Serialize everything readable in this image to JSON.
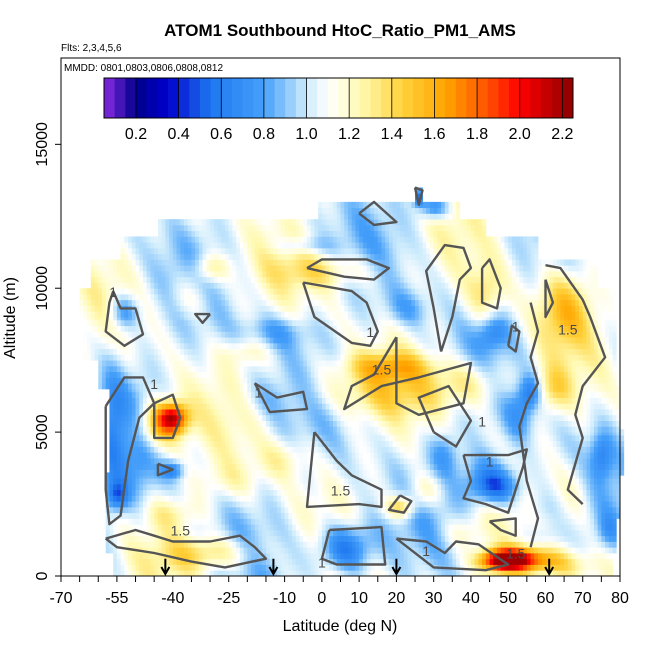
{
  "chart_data": {
    "type": "heatmap",
    "title": "ATOM1 Southbound HtoC_Ratio_PM1_AMS",
    "flights_note": "Flts: 2,3,4,5,6",
    "dates_note": "MMDD: 0801,0803,0806,0808,0812",
    "xlabel": "Latitude (deg N)",
    "ylabel": "Altitude (m)",
    "xlim": [
      -70,
      80
    ],
    "ylim": [
      0,
      18000
    ],
    "x_ticks": [
      -70,
      -55,
      -40,
      -25,
      -10,
      0,
      10,
      20,
      30,
      40,
      50,
      60,
      70,
      80
    ],
    "x_tick_labels": [
      "-70",
      "-55",
      "-40",
      "-25",
      "-10",
      "0",
      "10",
      "20",
      "30",
      "40",
      "50",
      "60",
      "70",
      "80"
    ],
    "y_ticks": [
      0,
      5000,
      10000,
      15000
    ],
    "y_tick_labels": [
      "0",
      "5000",
      "10000",
      "15000"
    ],
    "colorbar": {
      "range": [
        0.05,
        2.25
      ],
      "ticks": [
        0.2,
        0.4,
        0.6,
        0.8,
        1.0,
        1.2,
        1.4,
        1.6,
        1.8,
        2.0,
        2.2
      ],
      "tick_labels": [
        "0.2",
        "0.4",
        "0.6",
        "0.8",
        "1.0",
        "1.2",
        "1.4",
        "1.6",
        "1.8",
        "2.0",
        "2.2"
      ]
    },
    "contour_levels": [
      1,
      1.5
    ],
    "contour_labels": [
      {
        "text": "1",
        "lat": -56,
        "alt": 9700
      },
      {
        "text": "1",
        "lat": 13,
        "alt": 8300
      },
      {
        "text": "1.5",
        "lat": 16,
        "alt": 7000
      },
      {
        "text": "1",
        "lat": -17,
        "alt": 6200
      },
      {
        "text": "1",
        "lat": -45,
        "alt": 6500
      },
      {
        "text": "1.5",
        "lat": 66,
        "alt": 8400
      },
      {
        "text": "1",
        "lat": 52,
        "alt": 8500
      },
      {
        "text": "1",
        "lat": 43,
        "alt": 5200
      },
      {
        "text": "1",
        "lat": 45,
        "alt": 3800
      },
      {
        "text": "1.5",
        "lat": 5,
        "alt": 2800
      },
      {
        "text": "1.5",
        "lat": -38,
        "alt": 1400
      },
      {
        "text": "1",
        "lat": 0,
        "alt": 300
      },
      {
        "text": "1",
        "lat": 28,
        "alt": 700
      },
      {
        "text": "1.5",
        "lat": 52,
        "alt": 600
      }
    ],
    "markers_lat": [
      -42,
      -13,
      20,
      61
    ]
  },
  "colors": {
    "contour": "#555555",
    "axis": "#000000",
    "scale": [
      "#8a2be2",
      "#00008b",
      "#0000cd",
      "#1e90ff",
      "#87cefa",
      "#ffffff",
      "#fff5a0",
      "#ffd700",
      "#ffa500",
      "#ff4500",
      "#ff0000",
      "#8b0000"
    ]
  }
}
